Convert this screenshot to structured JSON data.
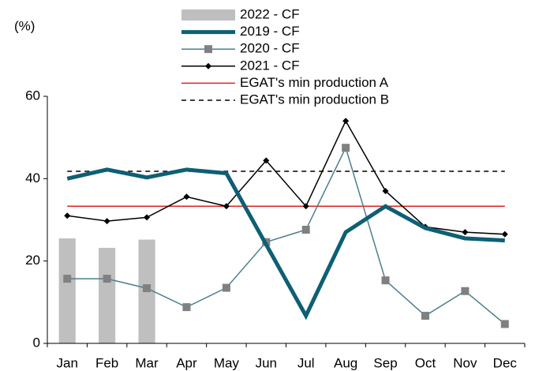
{
  "chart_data": {
    "type": "line",
    "y_label": "(%)",
    "categories": [
      "Jan",
      "Feb",
      "Mar",
      "Apr",
      "May",
      "Jun",
      "Jul",
      "Aug",
      "Sep",
      "Oct",
      "Nov",
      "Dec"
    ],
    "series": [
      {
        "name": "2022 - CF",
        "type": "bar",
        "color": "#bfbfbf",
        "values": [
          25.5,
          23.2,
          25.2,
          null,
          null,
          null,
          null,
          null,
          null,
          null,
          null,
          null
        ]
      },
      {
        "name": "2019 - CF",
        "type": "line",
        "color": "#0e5f74",
        "width": 5,
        "values": [
          40,
          42.2,
          40.3,
          42.2,
          41.3,
          24,
          6.7,
          27,
          33.3,
          28,
          25.5,
          25
        ]
      },
      {
        "name": "2020 - CF",
        "type": "line",
        "color": "#4a7f8c",
        "width": 1.5,
        "marker": "square",
        "marker_color": "#808080",
        "values": [
          15.7,
          15.7,
          13.4,
          8.8,
          13.5,
          24.6,
          27.6,
          47.5,
          15.3,
          6.7,
          12.7,
          4.7
        ]
      },
      {
        "name": "2021 - CF",
        "type": "line",
        "color": "#000000",
        "width": 1.5,
        "marker": "diamond",
        "marker_color": "#000000",
        "values": [
          31,
          29.7,
          30.6,
          35.6,
          33.3,
          44.4,
          33.3,
          54,
          37,
          28.3,
          27,
          26.5
        ]
      },
      {
        "name": "EGAT's min production A",
        "type": "line",
        "color": "#e02020",
        "width": 1.5,
        "values": [
          33.3,
          33.3,
          33.3,
          33.3,
          33.3,
          33.3,
          33.3,
          33.3,
          33.3,
          33.3,
          33.3,
          33.3
        ]
      },
      {
        "name": "EGAT's min production B",
        "type": "line",
        "color": "#000000",
        "width": 1.5,
        "dash": true,
        "values": [
          41.8,
          41.8,
          41.8,
          41.8,
          41.8,
          41.8,
          41.8,
          41.8,
          41.8,
          41.8,
          41.8,
          41.8
        ]
      }
    ],
    "ylim": [
      0,
      60
    ],
    "yticks": [
      0,
      20,
      40,
      60
    ],
    "grid": false
  }
}
